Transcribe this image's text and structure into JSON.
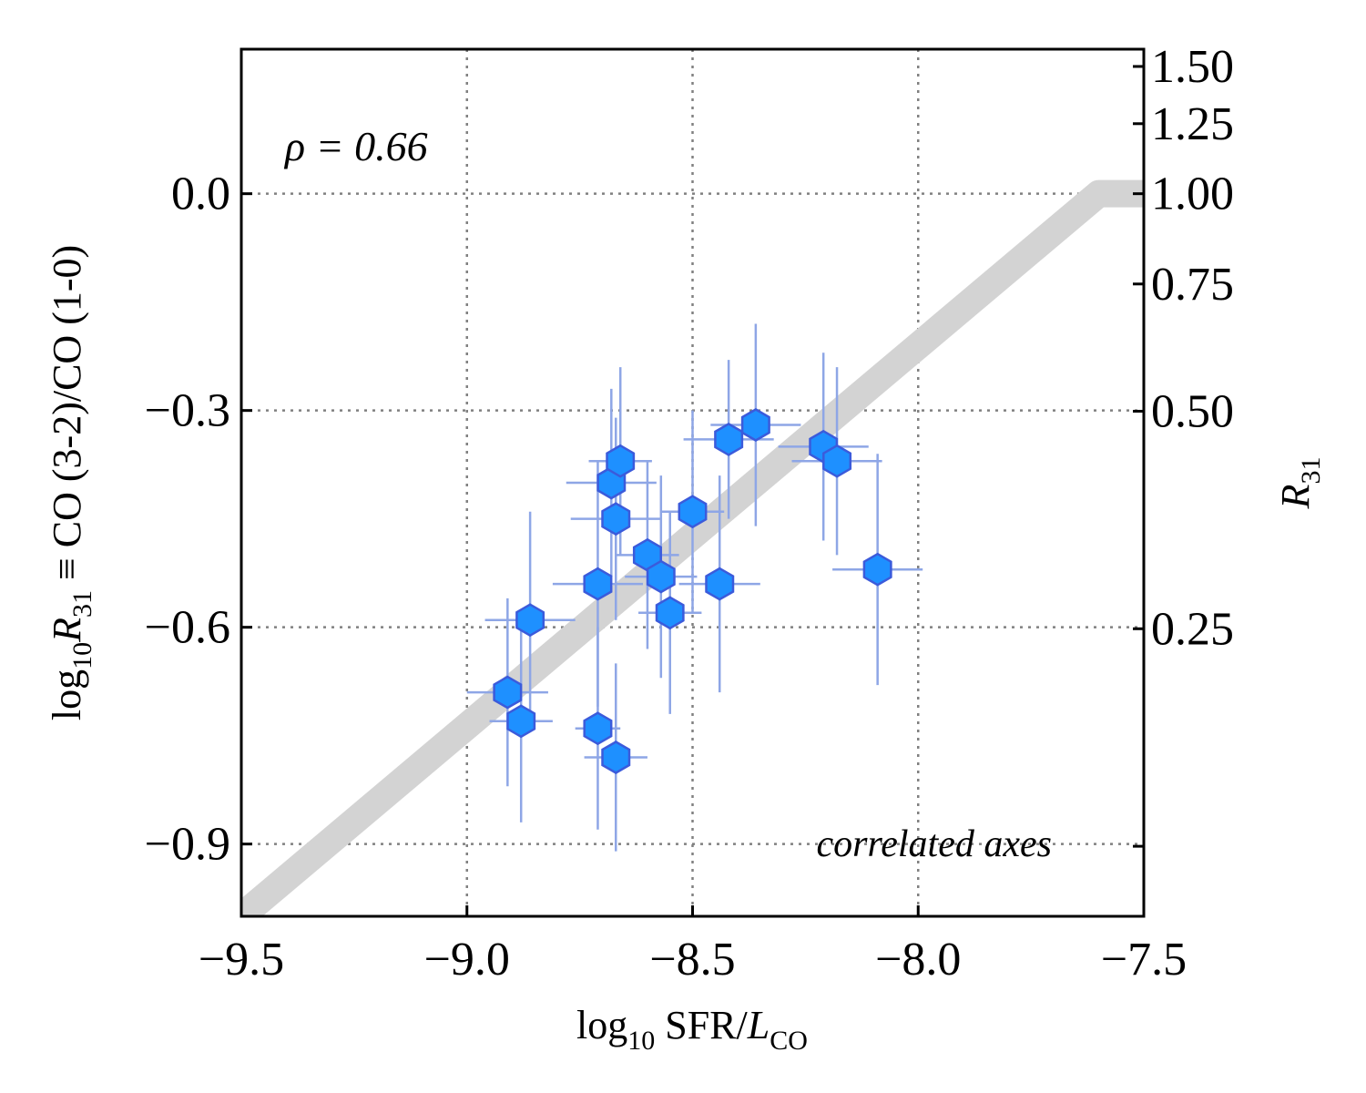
{
  "chart_data": {
    "type": "scatter",
    "annotation_rho": "ρ = 0.66",
    "annotation_corner": "correlated axes",
    "xlabel": {
      "base": "log",
      "sub": "10",
      "text": " SFR/",
      "italic": "L",
      "sub2": "CO"
    },
    "ylabel": {
      "base": "log",
      "sub": "10",
      "italic": "R",
      "sub2": "31",
      "text": " ≡ CO (3-2)/CO (1-0)"
    },
    "y2label": {
      "italic": "R",
      "sub": "31"
    },
    "xlim": [
      -9.5,
      -7.5
    ],
    "ylim": [
      -1.0,
      0.2
    ],
    "grid": true,
    "x_ticks": [
      -9.5,
      -9.0,
      -8.5,
      -8.0,
      -7.5
    ],
    "x_tick_labels": [
      "−9.5",
      "−9.0",
      "−8.5",
      "−8.0",
      "−7.5"
    ],
    "y_ticks": [
      0.0,
      -0.3,
      -0.6,
      -0.9
    ],
    "y_tick_labels": [
      "0.0",
      "−0.3",
      "−0.6",
      "−0.9"
    ],
    "y2_ticks": [
      1.5,
      1.25,
      1.0,
      0.75,
      0.5,
      0.25,
      0.125
    ],
    "y2_tick_labels": [
      "1.50",
      "1.25",
      "1.00",
      "0.75",
      "0.50",
      "0.25",
      ""
    ],
    "reference_line": {
      "x": [
        -9.5,
        -7.6,
        -7.5
      ],
      "y": [
        -1.0,
        0.0,
        0.0
      ],
      "color": "#d3d3d3"
    },
    "marker_color": "#1e90ff",
    "marker_edge": "#3b5bdb",
    "errorbar_color": "#8ea6e6",
    "points": [
      {
        "x": -8.91,
        "y": -0.69,
        "xerr": 0.09,
        "yerr": 0.13
      },
      {
        "x": -8.88,
        "y": -0.73,
        "xerr": 0.07,
        "yerr": 0.14
      },
      {
        "x": -8.86,
        "y": -0.59,
        "xerr": 0.1,
        "yerr": 0.15
      },
      {
        "x": -8.71,
        "y": -0.74,
        "xerr": 0.05,
        "yerr": 0.14
      },
      {
        "x": -8.71,
        "y": -0.54,
        "xerr": 0.1,
        "yerr": 0.17
      },
      {
        "x": -8.67,
        "y": -0.78,
        "xerr": 0.07,
        "yerr": 0.13
      },
      {
        "x": -8.68,
        "y": -0.4,
        "xerr": 0.1,
        "yerr": 0.13
      },
      {
        "x": -8.66,
        "y": -0.37,
        "xerr": 0.07,
        "yerr": 0.13
      },
      {
        "x": -8.67,
        "y": -0.45,
        "xerr": 0.1,
        "yerr": 0.14
      },
      {
        "x": -8.6,
        "y": -0.5,
        "xerr": 0.07,
        "yerr": 0.13
      },
      {
        "x": -8.57,
        "y": -0.53,
        "xerr": 0.08,
        "yerr": 0.14
      },
      {
        "x": -8.55,
        "y": -0.58,
        "xerr": 0.07,
        "yerr": 0.14
      },
      {
        "x": -8.5,
        "y": -0.44,
        "xerr": 0.07,
        "yerr": 0.14
      },
      {
        "x": -8.44,
        "y": -0.54,
        "xerr": 0.09,
        "yerr": 0.15
      },
      {
        "x": -8.42,
        "y": -0.34,
        "xerr": 0.1,
        "yerr": 0.11
      },
      {
        "x": -8.36,
        "y": -0.32,
        "xerr": 0.1,
        "yerr": 0.14
      },
      {
        "x": -8.21,
        "y": -0.35,
        "xerr": 0.1,
        "yerr": 0.13
      },
      {
        "x": -8.18,
        "y": -0.37,
        "xerr": 0.1,
        "yerr": 0.13
      },
      {
        "x": -8.09,
        "y": -0.52,
        "xerr": 0.1,
        "yerr": 0.16
      }
    ]
  }
}
